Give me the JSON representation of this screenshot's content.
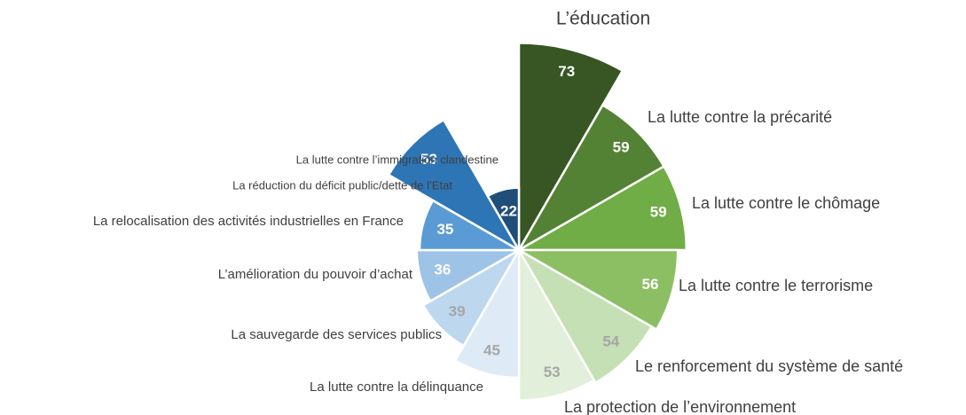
{
  "chart_data": {
    "type": "polar-area",
    "categories": [
      "L’éducation",
      "La lutte contre la précarité",
      "La lutte contre le chômage",
      "La lutte contre le terrorisme",
      "Le renforcement du système de santé",
      "La protection de l’environnement",
      "La lutte contre la délinquance",
      "La sauvegarde des services publics",
      "L’amélioration du pouvoir d’achat",
      "La relocalisation des activités industrielles en France",
      "La réduction du déficit public/dette de l’Etat",
      "La lutte contre l’immigration clandestine"
    ],
    "values": [
      73,
      59,
      59,
      56,
      54,
      53,
      45,
      39,
      36,
      35,
      53,
      22
    ],
    "colors": [
      "#375623",
      "#548235",
      "#70ad47",
      "#8cbf63",
      "#c5e0b4",
      "#e2efda",
      "#deebf7",
      "#bdd7ee",
      "#9dc3e6",
      "#5b9bd5",
      "#2e75b6",
      "#1f4e79"
    ]
  }
}
